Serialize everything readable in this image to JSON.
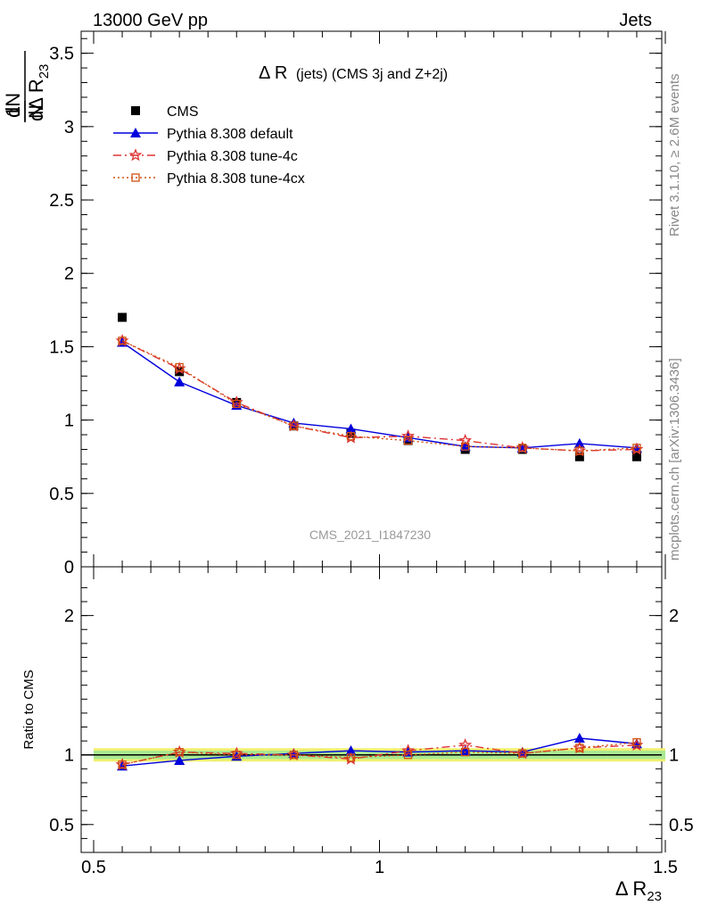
{
  "header": {
    "left": "13000 GeV pp",
    "right": "Jets"
  },
  "side_labels": {
    "rivet": "Rivet 3.1.10, ≥ 2.6M events",
    "mcplots": "mcplots.cern.ch [arXiv:1306.3436]"
  },
  "watermark": "CMS_2021_I1847230",
  "chart_data": [
    {
      "type": "line",
      "title_main": "Δ R",
      "title_paren": "(jets) (CMS 3j and Z+2j)",
      "ylabel": "1/N dN/dΔ R23",
      "xlabel": "Δ R23",
      "xlim": [
        0.5,
        1.5
      ],
      "ylim": [
        0,
        3.65
      ],
      "yticks": [
        0,
        0.5,
        1,
        1.5,
        2,
        2.5,
        3,
        3.5
      ],
      "ytick_labels": [
        "0",
        "0.5",
        "1",
        "1.5",
        "2",
        "2.5",
        "3",
        "3.5"
      ],
      "legend_position": "top-left",
      "x": [
        0.55,
        0.65,
        0.75,
        0.85,
        0.95,
        1.05,
        1.15,
        1.25,
        1.35,
        1.45
      ],
      "series": [
        {
          "name": "CMS",
          "color": "#000000",
          "marker": "square-filled",
          "line": "none",
          "values": [
            1.7,
            1.33,
            1.12,
            0.96,
            0.91,
            0.86,
            0.8,
            0.8,
            0.75,
            0.75
          ]
        },
        {
          "name": "Pythia 8.308 default",
          "color": "#0000dd",
          "marker": "triangle-filled",
          "line": "solid",
          "values": [
            1.53,
            1.26,
            1.1,
            0.98,
            0.94,
            0.88,
            0.82,
            0.81,
            0.84,
            0.81
          ]
        },
        {
          "name": "Pythia 8.308 tune-4c",
          "color": "#dd3333",
          "marker": "star-open",
          "line": "dashdot",
          "values": [
            1.54,
            1.35,
            1.12,
            0.96,
            0.88,
            0.89,
            0.86,
            0.81,
            0.79,
            0.8
          ]
        },
        {
          "name": "Pythia 8.308 tune-4cx",
          "color": "#d05010",
          "marker": "square-open",
          "line": "dotted",
          "values": [
            1.54,
            1.36,
            1.11,
            0.96,
            0.89,
            0.86,
            0.82,
            0.81,
            0.79,
            0.81
          ]
        }
      ]
    },
    {
      "type": "line",
      "ylabel": "Ratio to CMS",
      "xlabel": "Δ R23",
      "xlim": [
        0.5,
        1.5
      ],
      "ylim": [
        0.3,
        2.35
      ],
      "yticks": [
        0.5,
        1,
        2
      ],
      "ytick_labels": [
        "0.5",
        "1",
        "2"
      ],
      "xticks": [
        0.5,
        1,
        1.5
      ],
      "xtick_labels": [
        "0.5",
        "1",
        "1.5"
      ],
      "reference_line": 1,
      "uncertainty_band": [
        0.03,
        0.03,
        0.03,
        0.03,
        0.03,
        0.03,
        0.03,
        0.03,
        0.03,
        0.03
      ],
      "x": [
        0.55,
        0.65,
        0.75,
        0.85,
        0.95,
        1.05,
        1.15,
        1.25,
        1.35,
        1.45
      ],
      "series": [
        {
          "name": "Pythia 8.308 default",
          "color": "#0000dd",
          "marker": "triangle-filled",
          "line": "solid",
          "values": [
            0.92,
            0.96,
            0.99,
            1.01,
            1.03,
            1.02,
            1.03,
            1.02,
            1.12,
            1.08
          ]
        },
        {
          "name": "Pythia 8.308 tune-4c",
          "color": "#dd3333",
          "marker": "star-open",
          "line": "dashdot",
          "values": [
            0.93,
            1.02,
            1.01,
            1.0,
            0.97,
            1.03,
            1.07,
            1.01,
            1.05,
            1.07
          ]
        },
        {
          "name": "Pythia 8.308 tune-4cx",
          "color": "#d05010",
          "marker": "square-open",
          "line": "dotted",
          "values": [
            0.93,
            1.02,
            1.0,
            1.0,
            0.98,
            1.0,
            1.02,
            1.01,
            1.05,
            1.09
          ]
        }
      ]
    }
  ]
}
